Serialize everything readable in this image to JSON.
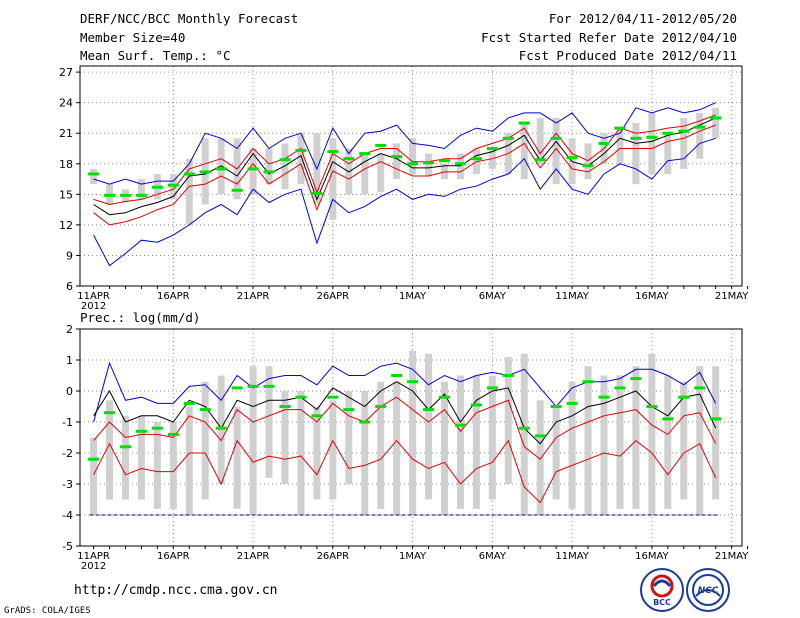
{
  "header": {
    "title": "DERF/NCC/BCC Monthly Forecast",
    "member_size": "Member Size=40",
    "variable": "Mean Surf. Temp.: °C",
    "period": "For 2012/04/11-2012/05/20",
    "start_date": "Fcst Started Refer Date 2012/04/10",
    "produced_date": "Fcst Produced Date 2012/04/11"
  },
  "precip_label": "Prec.: log(mm/d)",
  "footer": {
    "url": "http://cmdp.ncc.cma.gov.cn",
    "credit": "GrADS: COLA/IGES"
  },
  "logos": {
    "bcc": "BCC",
    "ncc": "NCC"
  },
  "colors": {
    "grey_bar": "#d0d0d0",
    "green": "#00e000",
    "black": "#000000",
    "red": "#e00000",
    "blue": "#0000e0"
  },
  "chart_data": [
    {
      "type": "line",
      "title": "Mean Surf. Temp.: °C",
      "x_labels": [
        {
          "day": 0,
          "label": "11APR",
          "sub": "2012"
        },
        {
          "day": 5,
          "label": "16APR"
        },
        {
          "day": 10,
          "label": "21APR"
        },
        {
          "day": 15,
          "label": "26APR"
        },
        {
          "day": 20,
          "label": "1MAY"
        },
        {
          "day": 25,
          "label": "6MAY"
        },
        {
          "day": 30,
          "label": "11MAY"
        },
        {
          "day": 35,
          "label": "16MAY"
        },
        {
          "day": 40,
          "label": "21MAY"
        }
      ],
      "ylim": [
        6,
        27.6
      ],
      "yticks": [
        6,
        9,
        12,
        15,
        18,
        21,
        24,
        27
      ],
      "bar_low": [
        16,
        14,
        14.2,
        14.5,
        14.5,
        14.5,
        12,
        14,
        15,
        14.5,
        15,
        16,
        15.5,
        16,
        14,
        12.5,
        15,
        15,
        15.2,
        16.5,
        17,
        16.8,
        16.5,
        16.5,
        17,
        17.5,
        17,
        16.5,
        18,
        16,
        16,
        16.5,
        18,
        18,
        16,
        17,
        17,
        17.5,
        18.5,
        20.5
      ],
      "bar_high": [
        17.5,
        16,
        15.5,
        16.5,
        17,
        17,
        18.5,
        20.5,
        20.5,
        20.5,
        19.5,
        19.5,
        20,
        21,
        21,
        20.5,
        19.5,
        19,
        19,
        20,
        20.5,
        19,
        18,
        19,
        19.5,
        19.5,
        21,
        22,
        22.5,
        22.5,
        20.5,
        20,
        21,
        21.5,
        22,
        23,
        21,
        22.5,
        23,
        23.5
      ],
      "green": [
        17,
        14.9,
        14.9,
        14.9,
        15.7,
        15.9,
        17,
        17.2,
        17.5,
        15.4,
        17.5,
        17.2,
        18.4,
        19.3,
        15.1,
        19.2,
        18.5,
        19,
        19.8,
        18.7,
        18,
        18.1,
        18.3,
        18,
        18.5,
        19.5,
        20.5,
        22,
        18.4,
        20.5,
        18.6,
        17.8,
        20,
        21.5,
        20.5,
        20.6,
        21,
        21.2,
        21.6,
        22.5
      ],
      "series": [
        {
          "name": "max",
          "color": "#0000e0",
          "values": [
            16.5,
            16,
            16.5,
            16,
            16.3,
            16.3,
            18,
            21,
            20.5,
            19.5,
            21.5,
            19.5,
            20.5,
            21,
            17.5,
            21.5,
            19,
            21,
            21.2,
            21.8,
            20,
            19.8,
            19.5,
            20.8,
            21.5,
            21.2,
            22.5,
            23,
            23,
            22,
            23,
            21,
            20.5,
            21,
            23.5,
            23,
            23.5,
            23,
            23.3,
            24
          ]
        },
        {
          "name": "upper",
          "color": "#e00000",
          "values": [
            14.5,
            14,
            14.3,
            14.5,
            15,
            15.5,
            17.5,
            18,
            18.5,
            17.5,
            19.5,
            18,
            18.5,
            19.5,
            15.2,
            19,
            18,
            19,
            19.5,
            19.5,
            18.2,
            18.2,
            18.5,
            18.5,
            19.5,
            20,
            20.5,
            21.5,
            19,
            21,
            19,
            18.3,
            19.5,
            21.5,
            21,
            21.2,
            21.5,
            21.7,
            22.2,
            22.8
          ]
        },
        {
          "name": "mean",
          "color": "#000000",
          "values": [
            14,
            13,
            13.2,
            13.8,
            14.2,
            14.8,
            16.8,
            17,
            17.8,
            16.8,
            19,
            17,
            17.8,
            18.8,
            14.5,
            18.2,
            17.2,
            18.2,
            19,
            18.5,
            17.6,
            17.6,
            17.8,
            17.8,
            18.8,
            19.2,
            19.8,
            20.8,
            18.3,
            20.2,
            18.2,
            17.8,
            19,
            20.5,
            20,
            20.2,
            20.8,
            21.1,
            21.8,
            22.5
          ]
        },
        {
          "name": "lower",
          "color": "#e00000",
          "values": [
            13.2,
            12,
            12.3,
            12.8,
            13.5,
            14,
            15.8,
            16,
            16.8,
            16,
            18,
            16,
            17,
            18,
            13.5,
            17.3,
            16.5,
            17.5,
            18.2,
            17.5,
            16.8,
            16.8,
            17.2,
            17.2,
            18.2,
            18.5,
            19,
            20,
            17.6,
            19.5,
            17.5,
            17.2,
            18.2,
            19.5,
            19.5,
            19.5,
            20.2,
            20.5,
            21.2,
            21.8
          ]
        },
        {
          "name": "min",
          "color": "#0000e0",
          "values": [
            11,
            8,
            9.2,
            10.5,
            10.3,
            11,
            12,
            13.2,
            14,
            13,
            15.5,
            14.2,
            15,
            15.5,
            10.2,
            14.5,
            13.2,
            13.8,
            14.8,
            15.5,
            14.5,
            15,
            14.8,
            15.5,
            15.8,
            16.5,
            17,
            18.5,
            15.5,
            17.5,
            15.5,
            15,
            17,
            18,
            17.5,
            16.5,
            18.3,
            18.5,
            20,
            20.5
          ]
        }
      ]
    },
    {
      "type": "line",
      "title": "Prec.: log(mm/d)",
      "x_labels": [
        {
          "day": 0,
          "label": "11APR",
          "sub": "2012"
        },
        {
          "day": 5,
          "label": "16APR"
        },
        {
          "day": 10,
          "label": "21APR"
        },
        {
          "day": 15,
          "label": "26APR"
        },
        {
          "day": 20,
          "label": "1MAY"
        },
        {
          "day": 25,
          "label": "6MAY"
        },
        {
          "day": 30,
          "label": "11MAY"
        },
        {
          "day": 35,
          "label": "16MAY"
        },
        {
          "day": 40,
          "label": "21MAY"
        }
      ],
      "ylim": [
        -5,
        2
      ],
      "yticks": [
        -5,
        -4,
        -3,
        -2,
        -1,
        0,
        1,
        2
      ],
      "floor": -4,
      "bar_low": [
        -4,
        -3.5,
        -3.5,
        -3.5,
        -3.8,
        -3.8,
        -4,
        -3.5,
        -3,
        -3.8,
        -4,
        -2.8,
        -3,
        -4,
        -3.5,
        -3.5,
        -3,
        -4,
        -3.8,
        -4,
        -4,
        -3.5,
        -4,
        -3.8,
        -3.8,
        -3.5,
        -3,
        -4,
        -4,
        -3.5,
        -3.8,
        -4,
        -4,
        -3.8,
        -3.8,
        -4,
        -3.8,
        -3.5,
        -4,
        -3.5
      ],
      "bar_high": [
        -1.5,
        -0.3,
        -0.8,
        -0.8,
        -1,
        -1,
        -0.5,
        0.3,
        0.5,
        -0.5,
        0.8,
        0.8,
        0,
        0,
        -0.5,
        -0.3,
        0,
        0,
        0.3,
        0.3,
        1.3,
        1.2,
        0.3,
        0.5,
        0.5,
        0.5,
        1.1,
        1.2,
        -0.3,
        -0.5,
        0.3,
        0.8,
        0.5,
        0.5,
        0.8,
        1.2,
        0.5,
        0.3,
        0.8,
        0.8
      ],
      "green": [
        -2.2,
        -0.7,
        -1.8,
        -1.3,
        -1.2,
        -1.4,
        -0.4,
        -0.6,
        -1.2,
        0.1,
        0.15,
        0.15,
        -0.5,
        -0.2,
        -0.8,
        -0.2,
        -0.6,
        -1,
        -0.5,
        0.5,
        0.3,
        -0.6,
        -0.2,
        -1.1,
        -0.45,
        0.1,
        0.5,
        -1.2,
        -1.45,
        -0.5,
        -0.4,
        0.3,
        -0.2,
        0.1,
        0.4,
        -0.5,
        -0.9,
        -0.2,
        0.1,
        -0.9
      ],
      "series": [
        {
          "name": "max",
          "color": "#0000e0",
          "values": [
            -1,
            0.9,
            -0.3,
            -0.2,
            -0.4,
            -0.4,
            0.15,
            0.2,
            -0.3,
            0.5,
            0.1,
            0.4,
            0.5,
            0.5,
            0.2,
            0.8,
            0.5,
            0.5,
            0.8,
            0.9,
            0.7,
            0.2,
            0.5,
            0.3,
            0.5,
            0.6,
            0.5,
            0.7,
            0.1,
            -0.5,
            0.1,
            0.3,
            0.3,
            0.4,
            0.7,
            0.7,
            0.5,
            0.2,
            0.6,
            -0.4
          ]
        },
        {
          "name": "mean",
          "color": "#000000",
          "values": [
            -0.8,
            0,
            -1,
            -0.8,
            -0.8,
            -1,
            -0.3,
            -0.5,
            -1.2,
            -0.3,
            -0.5,
            -0.3,
            -0.3,
            -0.2,
            -0.6,
            0.1,
            -0.2,
            -0.5,
            0,
            0.3,
            0,
            -0.6,
            -0.1,
            -1,
            -0.3,
            0,
            0.1,
            -1.2,
            -1.7,
            -1,
            -0.8,
            -0.5,
            -0.4,
            -0.2,
            0,
            -0.5,
            -0.8,
            -0.2,
            -0.1,
            -1.2
          ]
        },
        {
          "name": "upper",
          "color": "#e00000",
          "values": [
            -1.6,
            -1,
            -1.5,
            -1.4,
            -1.4,
            -1.5,
            -0.8,
            -1,
            -1.6,
            -0.6,
            -1,
            -0.8,
            -0.6,
            -0.6,
            -1,
            -0.4,
            -0.8,
            -1,
            -0.5,
            -0.2,
            -0.6,
            -1,
            -0.6,
            -1.3,
            -0.7,
            -0.5,
            -0.3,
            -1.8,
            -2.2,
            -1.5,
            -1.2,
            -1,
            -0.8,
            -0.7,
            -0.6,
            -1.1,
            -1.4,
            -0.8,
            -0.7,
            -1.7
          ]
        },
        {
          "name": "lower",
          "color": "#e00000",
          "values": [
            -2.7,
            -1.7,
            -2.7,
            -2.5,
            -2.6,
            -2.6,
            -2,
            -2,
            -3,
            -1.6,
            -2.3,
            -2.1,
            -2.2,
            -2.1,
            -2.7,
            -1.6,
            -2.5,
            -2.4,
            -2.2,
            -1.6,
            -2.2,
            -2.5,
            -2.3,
            -3,
            -2.5,
            -2.3,
            -1.6,
            -3.1,
            -3.6,
            -2.6,
            -2.4,
            -2.2,
            -2,
            -2.1,
            -1.6,
            -2,
            -2.7,
            -2,
            -1.7,
            -2.8
          ]
        }
      ]
    }
  ]
}
